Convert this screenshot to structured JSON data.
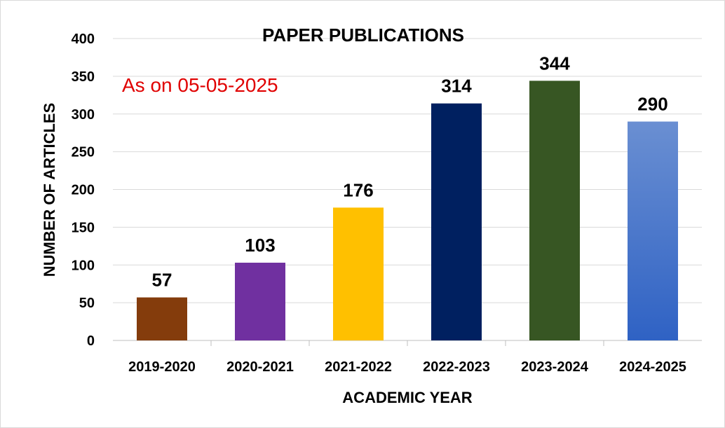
{
  "chart_data": {
    "type": "bar",
    "title": "PAPER PUBLICATIONS",
    "subtitle": "As on 05-05-2025",
    "subtitle_color": "#e00000",
    "xlabel": "ACADEMIC YEAR",
    "ylabel": "NUMBER OF ARTICLES",
    "ylim": [
      0,
      400
    ],
    "yticks": [
      0,
      50,
      100,
      150,
      200,
      250,
      300,
      350,
      400
    ],
    "grid": true,
    "legend": "none",
    "categories": [
      "2019-2020",
      "2020-2021",
      "2021-2022",
      "2022-2023",
      "2023-2024",
      "2024-2025"
    ],
    "values": [
      57,
      103,
      176,
      314,
      344,
      290
    ],
    "colors": [
      "#843c0c",
      "#7030a0",
      "#ffc000",
      "#002060",
      "#375623",
      "#4472c4"
    ]
  }
}
